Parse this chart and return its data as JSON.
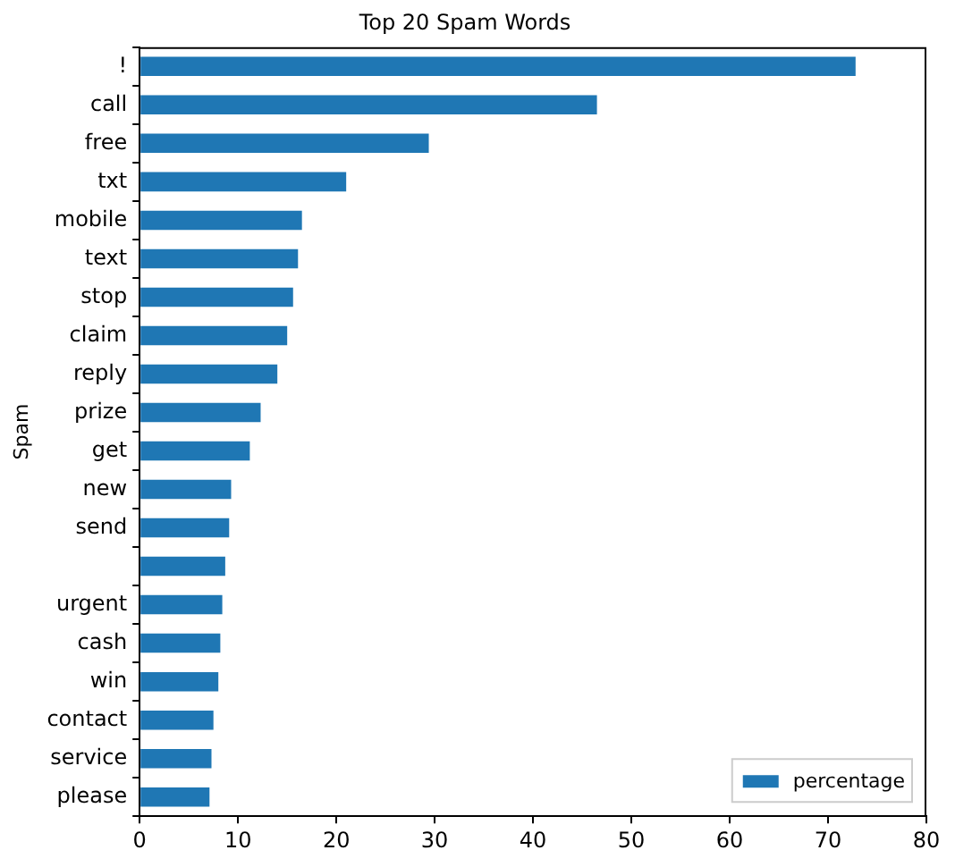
{
  "chart_data": {
    "type": "bar",
    "orientation": "horizontal",
    "title": "Top 20 Spam Words",
    "ylabel": "Spam",
    "categories": [
      "!",
      "call",
      "free",
      "txt",
      "mobile",
      "text",
      "stop",
      "claim",
      "reply",
      "prize",
      "get",
      "new",
      "send",
      null,
      "urgent",
      "cash",
      "win",
      "contact",
      "service",
      "please"
    ],
    "series": [
      {
        "name": "percentage",
        "color": "#1f77b4",
        "values": [
          72.8,
          46.5,
          29.4,
          21.0,
          16.5,
          16.1,
          15.6,
          15.0,
          14.0,
          12.3,
          11.2,
          9.3,
          9.1,
          8.7,
          8.4,
          8.2,
          8.0,
          7.5,
          7.3,
          7.1
        ]
      }
    ],
    "xlim": [
      0,
      80
    ],
    "xticks": [
      0,
      10,
      20,
      30,
      40,
      50,
      60,
      70,
      80
    ],
    "grid": false,
    "legend": "bottom right"
  }
}
